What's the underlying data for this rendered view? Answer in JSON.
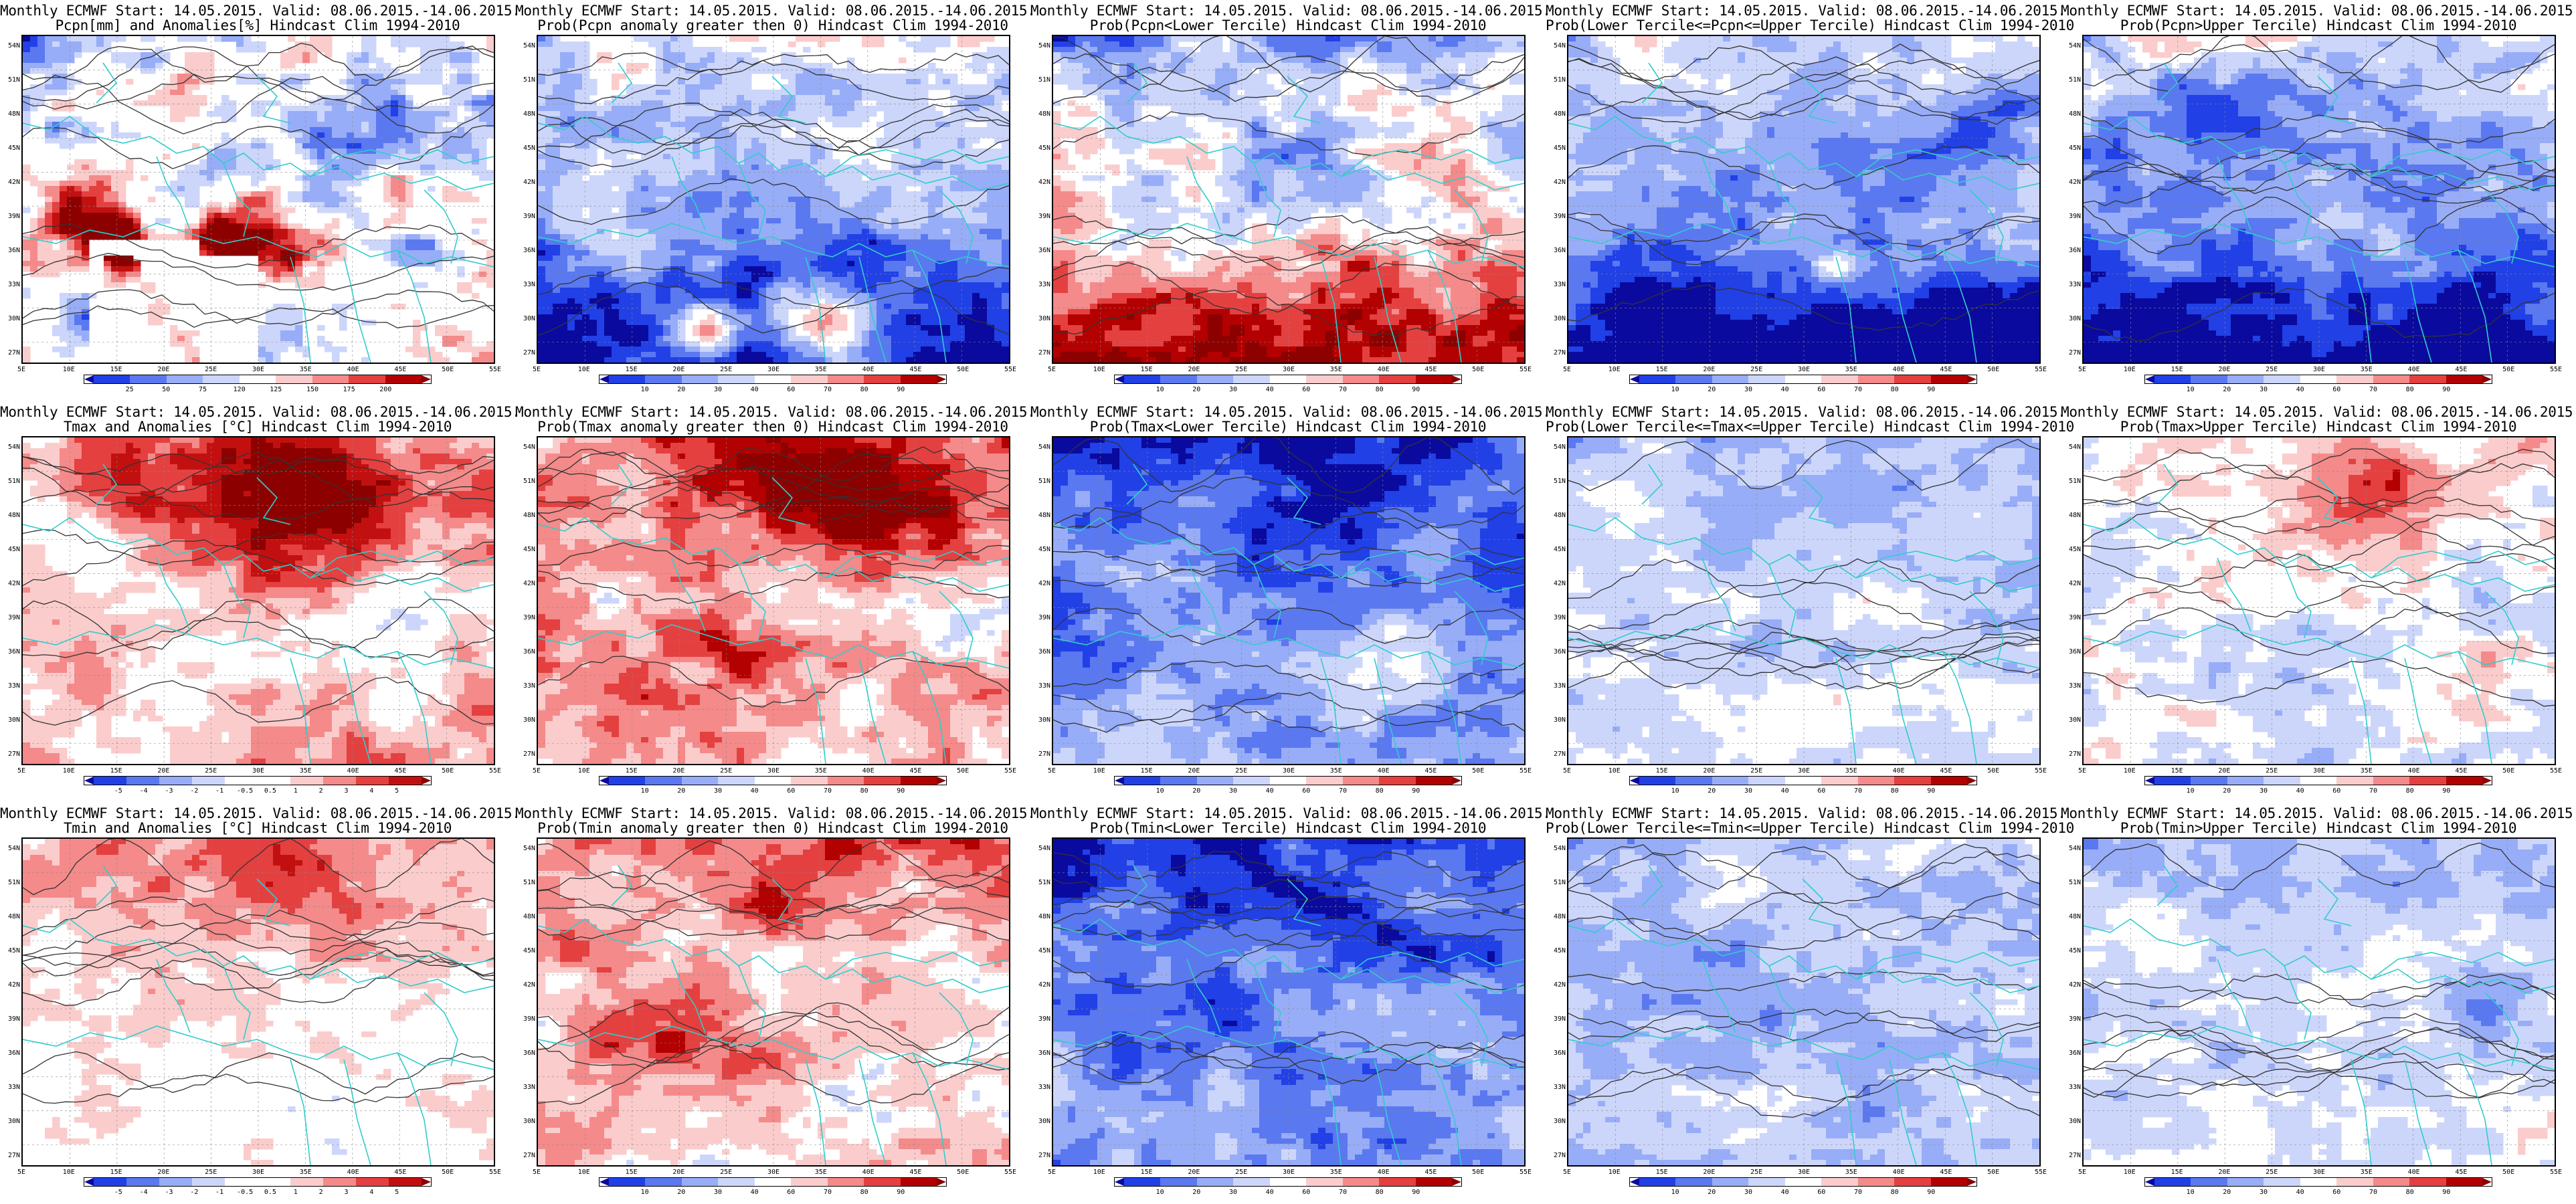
{
  "lat_labels": [
    "54N",
    "51N",
    "48N",
    "45N",
    "42N",
    "39N",
    "36N",
    "33N",
    "30N",
    "27N"
  ],
  "lon_labels": [
    "5E",
    "10E",
    "15E",
    "20E",
    "25E",
    "30E",
    "35E",
    "40E",
    "45E",
    "50E",
    "55E"
  ],
  "colors": {
    "coast": "#33cccc",
    "contour": "#333333",
    "prob_scale": [
      "#0a0a9e",
      "#2140e6",
      "#5a78f0",
      "#98adf7",
      "#ccd6fb",
      "#ffffff",
      "#fbcccc",
      "#f48a8a",
      "#e44040",
      "#b30000",
      "#8c0000"
    ],
    "anom_scale": [
      "#0a0a9e",
      "#2140e6",
      "#5a78f0",
      "#98adf7",
      "#ccd6fb",
      "#ffffff",
      "#ffffff",
      "#fbcccc",
      "#f48a8a",
      "#e44040",
      "#c21010",
      "#8c0000"
    ]
  },
  "colorbars": {
    "pcpn": [
      "25",
      "50",
      "75",
      "120",
      "125",
      "150",
      "175",
      "200"
    ],
    "prob": [
      "10",
      "20",
      "30",
      "40",
      "60",
      "70",
      "80",
      "90"
    ],
    "temp": [
      "-5",
      "-4",
      "-3",
      "-2",
      "-1",
      "-0.5",
      "0.5",
      "1",
      "2",
      "3",
      "4",
      "5"
    ]
  },
  "panels": [
    {
      "title1": "Monthly ECMWF Start: 14.05.2015. Valid: 08.06.2015.-14.06.2015.",
      "title2": "Pcpn[mm] and Anomalies[%] Hindcast Clim 1994-2010",
      "cbar": "pcpn",
      "cmap": "anom",
      "field": {
        "base": 0.45,
        "north": 0.0,
        "south": 0.0,
        "noise": 0.35,
        "seed": 11,
        "blobs": [
          {
            "u": 0.12,
            "v": 0.52,
            "r": 0.12,
            "a": 0.55
          },
          {
            "u": 0.45,
            "v": 0.62,
            "r": 0.13,
            "a": 0.6
          },
          {
            "u": 0.22,
            "v": 0.65,
            "r": 0.08,
            "a": 0.5
          },
          {
            "u": 0.8,
            "v": 0.2,
            "r": 0.15,
            "a": -0.25
          }
        ]
      },
      "mask": {
        "type": "pcpn"
      }
    },
    {
      "title1": "Monthly ECMWF Start: 14.05.2015. Valid: 08.06.2015.-14.06.2015.",
      "title2": "Prob(Pcpn anomaly greater then 0) Hindcast Clim 1994-2010",
      "cbar": "prob",
      "cmap": "prob",
      "field": {
        "base": 0.33,
        "north": 0.08,
        "south": -0.3,
        "noise": 0.22,
        "seed": 23,
        "blobs": [
          {
            "u": 0.6,
            "v": 0.88,
            "r": 0.12,
            "a": 0.55
          },
          {
            "u": 0.35,
            "v": 0.9,
            "r": 0.08,
            "a": 0.45
          }
        ]
      }
    },
    {
      "title1": "Monthly ECMWF Start: 14.05.2015. Valid: 08.06.2015.-14.06.2015.",
      "title2": "Prob(Pcpn<Lower Tercile) Hindcast Clim 1994-2010",
      "cbar": "prob",
      "cmap": "prob",
      "field": {
        "base": 0.5,
        "north": -0.08,
        "south": 0.45,
        "noise": 0.25,
        "seed": 37,
        "blobs": [
          {
            "u": 0.5,
            "v": 0.35,
            "r": 0.15,
            "a": -0.15
          }
        ]
      }
    },
    {
      "title1": "Monthly ECMWF Start: 14.05.2015. Valid: 08.06.2015.-14.06.2015.",
      "title2": "Prob(Lower Tercile<=Pcpn<=Upper Tercile) Hindcast Clim 1994-2010",
      "cbar": "prob",
      "cmap": "prob",
      "field": {
        "base": 0.28,
        "north": 0.1,
        "south": -0.35,
        "noise": 0.18,
        "seed": 41,
        "blobs": [
          {
            "u": 0.57,
            "v": 0.7,
            "r": 0.05,
            "a": 0.35
          },
          {
            "u": 0.9,
            "v": 0.2,
            "r": 0.12,
            "a": -0.2
          }
        ]
      }
    },
    {
      "title1": "Monthly ECMWF Start: 14.05.2015. Valid: 08.06.2015.-14.06.2015.",
      "title2": "Prob(Pcpn>Upper Tercile) Hindcast Clim 1994-2010",
      "cbar": "prob",
      "cmap": "prob",
      "field": {
        "base": 0.3,
        "north": 0.08,
        "south": -0.32,
        "noise": 0.2,
        "seed": 53,
        "blobs": [
          {
            "u": 0.3,
            "v": 0.3,
            "r": 0.15,
            "a": -0.15
          }
        ]
      }
    },
    {
      "title1": "Monthly ECMWF Start: 14.05.2015. Valid: 08.06.2015.-14.06.2015.",
      "title2": "Tmax and Anomalies [°C] Hindcast Clim 1994-2010",
      "cbar": "temp",
      "cmap": "anom",
      "field": {
        "base": 0.62,
        "north": 0.05,
        "south": 0.0,
        "noise": 0.2,
        "seed": 61,
        "blobs": [
          {
            "u": 0.62,
            "v": 0.2,
            "r": 0.22,
            "a": 0.3
          },
          {
            "u": 0.25,
            "v": 0.15,
            "r": 0.12,
            "a": 0.2
          },
          {
            "u": 0.8,
            "v": 0.55,
            "r": 0.12,
            "a": -0.15
          }
        ]
      }
    },
    {
      "title1": "Monthly ECMWF Start: 14.05.2015. Valid: 08.06.2015.-14.06.2015.",
      "title2": "Prob(Tmax anomaly greater then 0) Hindcast Clim 1994-2010",
      "cbar": "prob",
      "cmap": "prob",
      "field": {
        "base": 0.62,
        "north": 0.08,
        "south": -0.02,
        "noise": 0.22,
        "seed": 71,
        "blobs": [
          {
            "u": 0.65,
            "v": 0.2,
            "r": 0.2,
            "a": 0.28
          },
          {
            "u": 0.4,
            "v": 0.65,
            "r": 0.12,
            "a": 0.25
          },
          {
            "u": 0.9,
            "v": 0.6,
            "r": 0.12,
            "a": -0.2
          }
        ]
      }
    },
    {
      "title1": "Monthly ECMWF Start: 14.05.2015. Valid: 08.06.2015.-14.06.2015.",
      "title2": "Prob(Tmax<Lower Tercile) Hindcast Clim 1994-2010",
      "cbar": "prob",
      "cmap": "prob",
      "field": {
        "base": 0.27,
        "north": -0.08,
        "south": 0.04,
        "noise": 0.2,
        "seed": 83,
        "blobs": [
          {
            "u": 0.75,
            "v": 0.65,
            "r": 0.12,
            "a": 0.2
          },
          {
            "u": 0.55,
            "v": 0.2,
            "r": 0.18,
            "a": -0.15
          }
        ]
      }
    },
    {
      "title1": "Monthly ECMWF Start: 14.05.2015. Valid: 08.06.2015.-14.06.2015.",
      "title2": "Prob(Lower Tercile<=Tmax<=Upper Tercile) Hindcast Clim 1994-2010",
      "cbar": "prob",
      "cmap": "prob",
      "field": {
        "base": 0.43,
        "north": -0.03,
        "south": 0.02,
        "noise": 0.15,
        "seed": 97,
        "blobs": []
      }
    },
    {
      "title1": "Monthly ECMWF Start: 14.05.2015. Valid: 08.06.2015.-14.06.2015.",
      "title2": "Prob(Tmax>Upper Tercile) Hindcast Clim 1994-2010",
      "cbar": "prob",
      "cmap": "prob",
      "field": {
        "base": 0.47,
        "north": 0.05,
        "south": 0.0,
        "noise": 0.18,
        "seed": 101,
        "blobs": [
          {
            "u": 0.6,
            "v": 0.15,
            "r": 0.15,
            "a": 0.22
          },
          {
            "u": 0.3,
            "v": 0.7,
            "r": 0.15,
            "a": -0.12
          }
        ]
      }
    },
    {
      "title1": "Monthly ECMWF Start: 14.05.2015. Valid: 08.06.2015.-14.06.2015.",
      "title2": "Tmin and Anomalies [°C] Hindcast Clim 1994-2010",
      "cbar": "temp",
      "cmap": "anom",
      "field": {
        "base": 0.55,
        "north": 0.08,
        "south": -0.05,
        "noise": 0.16,
        "seed": 113,
        "blobs": [
          {
            "u": 0.6,
            "v": 0.15,
            "r": 0.2,
            "a": 0.15
          }
        ]
      }
    },
    {
      "title1": "Monthly ECMWF Start: 14.05.2015. Valid: 08.06.2015.-14.06.2015.",
      "title2": "Prob(Tmin anomaly greater then 0) Hindcast Clim 1994-2010",
      "cbar": "prob",
      "cmap": "prob",
      "field": {
        "base": 0.56,
        "north": 0.08,
        "south": 0.02,
        "noise": 0.2,
        "seed": 127,
        "blobs": [
          {
            "u": 0.3,
            "v": 0.6,
            "r": 0.15,
            "a": 0.2
          },
          {
            "u": 0.5,
            "v": 0.2,
            "r": 0.15,
            "a": 0.15
          }
        ]
      }
    },
    {
      "title1": "Monthly ECMWF Start: 14.05.2015. Valid: 08.06.2015.-14.06.2015.",
      "title2": "Prob(Tmin<Lower Tercile) Hindcast Clim 1994-2010",
      "cbar": "prob",
      "cmap": "prob",
      "field": {
        "base": 0.25,
        "north": -0.08,
        "south": 0.02,
        "noise": 0.2,
        "seed": 131,
        "blobs": [
          {
            "u": 0.55,
            "v": 0.3,
            "r": 0.15,
            "a": -0.1
          },
          {
            "u": 0.4,
            "v": 0.75,
            "r": 0.15,
            "a": 0.12
          }
        ]
      }
    },
    {
      "title1": "Monthly ECMWF Start: 14.05.2015. Valid: 08.06.2015.-14.06.2015.",
      "title2": "Prob(Lower Tercile<=Tmin<=Upper Tercile) Hindcast Clim 1994-2010",
      "cbar": "prob",
      "cmap": "prob",
      "field": {
        "base": 0.38,
        "north": 0.0,
        "south": 0.0,
        "noise": 0.15,
        "seed": 149,
        "blobs": []
      }
    },
    {
      "title1": "Monthly ECMWF Start: 14.05.2015. Valid: 08.06.2015.-14.06.2015.",
      "title2": "Prob(Tmin>Upper Tercile) Hindcast Clim 1994-2010",
      "cbar": "prob",
      "cmap": "prob",
      "field": {
        "base": 0.45,
        "north": -0.05,
        "south": 0.0,
        "noise": 0.15,
        "seed": 157,
        "blobs": [
          {
            "u": 0.85,
            "v": 0.5,
            "r": 0.12,
            "a": -0.15
          }
        ]
      }
    }
  ]
}
